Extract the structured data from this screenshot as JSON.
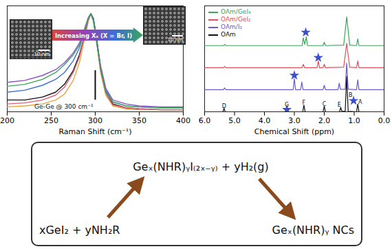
{
  "chart_data": [
    {
      "type": "line",
      "x_label": "Raman Shift (cm⁻¹)",
      "x": [
        200,
        220,
        240,
        255,
        265,
        275,
        282,
        288,
        292,
        295,
        298,
        302,
        306,
        312,
        320,
        335,
        350,
        375,
        400
      ],
      "series": [
        {
          "color": "#111111",
          "values": [
            0.12,
            0.12,
            0.15,
            0.2,
            0.28,
            0.42,
            0.58,
            0.78,
            0.93,
            1.0,
            0.95,
            0.72,
            0.45,
            0.2,
            0.08,
            0.04,
            0.03,
            0.02,
            0.02
          ]
        },
        {
          "color": "#e8a33d",
          "values": [
            0.05,
            0.06,
            0.08,
            0.12,
            0.18,
            0.32,
            0.5,
            0.75,
            0.92,
            1.0,
            0.93,
            0.68,
            0.4,
            0.17,
            0.06,
            0.03,
            0.02,
            0.02,
            0.02
          ]
        },
        {
          "color": "#e0607a",
          "values": [
            0.08,
            0.09,
            0.12,
            0.17,
            0.25,
            0.4,
            0.56,
            0.78,
            0.94,
            1.0,
            0.94,
            0.7,
            0.43,
            0.19,
            0.07,
            0.04,
            0.03,
            0.02,
            0.02
          ]
        },
        {
          "color": "#3b6fd6",
          "values": [
            0.2,
            0.22,
            0.27,
            0.33,
            0.4,
            0.52,
            0.65,
            0.82,
            0.95,
            1.0,
            0.94,
            0.7,
            0.46,
            0.22,
            0.1,
            0.06,
            0.05,
            0.04,
            0.04
          ]
        },
        {
          "color": "#8a4fc8",
          "values": [
            0.3,
            0.32,
            0.37,
            0.43,
            0.5,
            0.6,
            0.7,
            0.85,
            0.96,
            1.0,
            0.93,
            0.7,
            0.47,
            0.24,
            0.12,
            0.08,
            0.06,
            0.05,
            0.05
          ]
        },
        {
          "color": "#3aa55a",
          "values": [
            0.26,
            0.28,
            0.33,
            0.4,
            0.48,
            0.58,
            0.68,
            0.84,
            0.95,
            1.0,
            0.92,
            0.68,
            0.44,
            0.2,
            0.1,
            0.06,
            0.05,
            0.04,
            0.04
          ]
        }
      ],
      "xlim": [
        200,
        400
      ],
      "xticks": [
        200,
        250,
        300,
        350,
        400
      ],
      "ylim": [
        0,
        1.08
      ],
      "tick_labels": "x",
      "reference_line": {
        "x": 300,
        "y": [
          0.12,
          0.42
        ]
      },
      "annotations": [
        {
          "text": "Ge-Ge @ 300 cm⁻¹",
          "x": 300,
          "y": 0.05
        }
      ],
      "arrow_label": "Increasing Xₓ (X = Br, I)",
      "insets": [
        {
          "scale_bar": "10 nm"
        },
        {
          "scale_bar": "10 nm"
        }
      ]
    },
    {
      "type": "line",
      "x_label": "Chemical Shift (ppm)",
      "series": [
        {
          "name": "OAm/GeI₄",
          "color": "#3aa55a",
          "x": [
            6,
            5.37,
            5.33,
            5.29,
            2.74,
            2.7,
            2.65,
            2.6,
            2.56,
            2.04,
            2.0,
            1.96,
            1.35,
            1.25,
            1.15,
            0.92,
            0.88,
            0.84,
            0
          ],
          "values": [
            3,
            3,
            3.05,
            3,
            3,
            3.35,
            3.05,
            3.4,
            3,
            3,
            3.15,
            3,
            3.02,
            4.3,
            3.02,
            3,
            3.3,
            3,
            3
          ]
        },
        {
          "name": "OAm/GeI₂",
          "color": "#e0505a",
          "x": [
            6,
            5.37,
            5.33,
            5.29,
            2.74,
            2.7,
            2.66,
            2.24,
            2.2,
            2.16,
            2.04,
            2.0,
            1.96,
            1.35,
            1.25,
            1.15,
            0.92,
            0.88,
            0.84,
            0
          ],
          "values": [
            2,
            2,
            2.05,
            2,
            2,
            2.15,
            2,
            2,
            2.3,
            2,
            2,
            2.15,
            2,
            2.02,
            3.1,
            2.02,
            2,
            2.3,
            2,
            2
          ]
        },
        {
          "name": "OAm/I₂",
          "color": "#6a5acd",
          "x": [
            6,
            5.37,
            5.33,
            5.29,
            3.04,
            3.0,
            2.96,
            2.79,
            2.75,
            2.71,
            2.04,
            2.0,
            1.96,
            1.54,
            1.5,
            1.46,
            1.3,
            1.25,
            1.2,
            0.92,
            0.88,
            0.84,
            0
          ],
          "values": [
            1,
            1,
            1.08,
            1,
            1,
            1.5,
            1,
            1,
            1.35,
            1,
            1,
            1.2,
            1,
            1,
            1.3,
            1.02,
            1.02,
            2.2,
            1.02,
            1,
            1.45,
            1,
            1
          ]
        },
        {
          "name": "OAm",
          "color": "#111111",
          "x": [
            6,
            5.39,
            5.35,
            5.31,
            2.72,
            2.68,
            2.64,
            2.04,
            2.0,
            1.96,
            1.49,
            1.45,
            1.41,
            1.3,
            1.25,
            1.2,
            0.92,
            0.88,
            0.84,
            0
          ],
          "values": [
            0,
            0,
            0.15,
            0,
            0,
            0.3,
            0,
            0,
            0.25,
            0,
            0,
            0.2,
            0.02,
            0.02,
            1.6,
            0.02,
            0,
            0.35,
            0,
            0
          ]
        }
      ],
      "xlim": [
        6,
        0
      ],
      "xticks": [
        6,
        5,
        4,
        3,
        2,
        1,
        0
      ],
      "ylim": [
        0,
        4.8
      ],
      "tick_labels": "x",
      "legend": "top-left",
      "markers": {
        "marker": "star",
        "color": "#3a4fd0",
        "points": [
          {
            "x": 3.25,
            "y": 0.1
          },
          {
            "x": 1.02,
            "y": 0.5
          },
          {
            "x": 3.0,
            "y": 1.65
          },
          {
            "x": 2.2,
            "y": 2.45
          },
          {
            "x": 2.62,
            "y": 3.6
          }
        ]
      },
      "annotations": [
        {
          "text": "D",
          "x": 5.35,
          "y": 0.25
        },
        {
          "text": "G",
          "x": 3.25,
          "y": 0.3
        },
        {
          "text": "F",
          "x": 2.68,
          "y": 0.4
        },
        {
          "text": "C",
          "x": 2.0,
          "y": 0.35
        },
        {
          "text": "E",
          "x": 1.5,
          "y": 0.3
        },
        {
          "text": "B",
          "x": 1.12,
          "y": 0.75
        },
        {
          "text": "A",
          "x": 0.8,
          "y": 0.45
        }
      ]
    }
  ],
  "scheme": {
    "reactants": "xGeI₂ + yNH₂R",
    "intermediate": "Geₓ(NHR)ᵧI₍₂ₓ₋ᵧ₎ + yH₂(g)",
    "product": "Geₓ(NHR)ᵧ NCs"
  }
}
